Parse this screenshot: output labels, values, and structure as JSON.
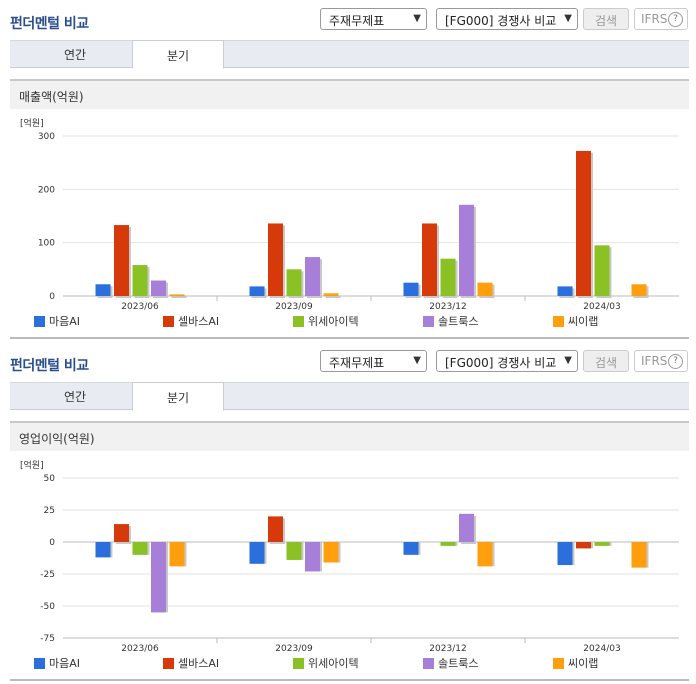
{
  "panels": [
    {
      "title": "펀더멘털 비교",
      "report_select": "주재무제표",
      "peer_select": "[FG000] 경쟁사 비교",
      "search_label": "검색",
      "ifrs_label": "IFRS",
      "help_label": "?",
      "tabs": [
        "연간",
        "분기"
      ],
      "active_tab": "분기",
      "section_title": "매출액(억원)"
    },
    {
      "title": "펀더멘털 비교",
      "report_select": "주재무제표",
      "peer_select": "[FG000] 경쟁사 비교",
      "search_label": "검색",
      "ifrs_label": "IFRS",
      "help_label": "?",
      "tabs": [
        "연간",
        "분기"
      ],
      "active_tab": "분기",
      "section_title": "영업이익(억원)"
    }
  ],
  "chart_data": [
    {
      "type": "bar",
      "unit_label": "[억원]",
      "categories": [
        "2023/06",
        "2023/09",
        "2023/12",
        "2024/03"
      ],
      "ylim": [
        0,
        300
      ],
      "yticks": [
        0,
        100,
        200,
        300
      ],
      "grid": true,
      "legend_position": "bottom",
      "series": [
        {
          "name": "마음AI",
          "color": "#2a6fdc",
          "values": [
            22,
            18,
            25,
            18
          ]
        },
        {
          "name": "셀바스AI",
          "color": "#d63a0a",
          "values": [
            133,
            136,
            136,
            272
          ]
        },
        {
          "name": "위세아이텍",
          "color": "#8ac226",
          "values": [
            58,
            50,
            70,
            95
          ]
        },
        {
          "name": "솔트룩스",
          "color": "#a77fd9",
          "values": [
            29,
            73,
            171,
            null
          ]
        },
        {
          "name": "씨이랩",
          "color": "#ff9f0d",
          "values": [
            3,
            5,
            25,
            22
          ]
        }
      ]
    },
    {
      "type": "bar",
      "unit_label": "[억원]",
      "categories": [
        "2023/06",
        "2023/09",
        "2023/12",
        "2024/03"
      ],
      "ylim": [
        -75,
        50
      ],
      "yticks": [
        50,
        25,
        0,
        -25,
        -50,
        -75
      ],
      "grid": true,
      "legend_position": "bottom",
      "series": [
        {
          "name": "마음AI",
          "color": "#2a6fdc",
          "values": [
            -12,
            -17,
            -10,
            -18
          ]
        },
        {
          "name": "셀바스AI",
          "color": "#d63a0a",
          "values": [
            14,
            20,
            null,
            -5
          ]
        },
        {
          "name": "위세아이텍",
          "color": "#8ac226",
          "values": [
            -10,
            -14,
            -3,
            -3
          ]
        },
        {
          "name": "솔트룩스",
          "color": "#a77fd9",
          "values": [
            -55,
            -23,
            22,
            null
          ]
        },
        {
          "name": "씨이랩",
          "color": "#ff9f0d",
          "values": [
            -19,
            -16,
            -19,
            -20
          ]
        }
      ]
    }
  ]
}
